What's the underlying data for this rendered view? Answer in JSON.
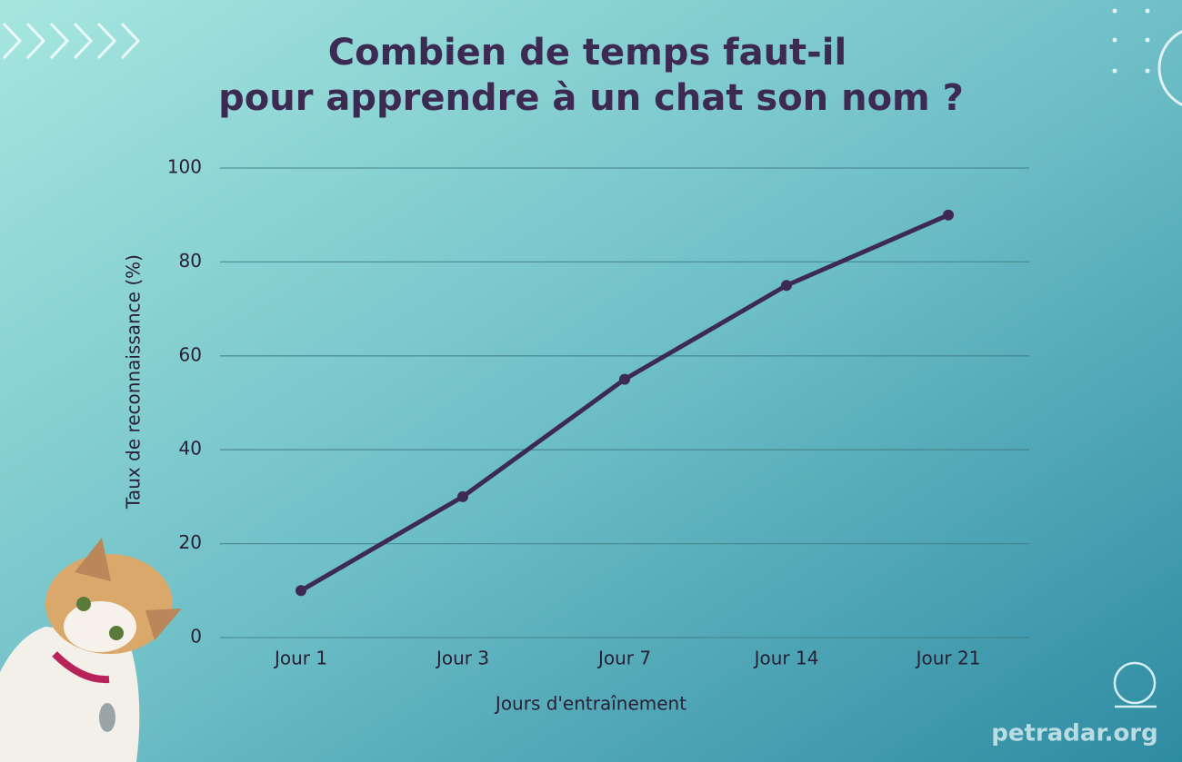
{
  "chart_data": {
    "type": "line",
    "title": [
      "Combien de temps faut-il",
      "pour apprendre à un chat son nom ?"
    ],
    "x_label": "Jours d'entraînement",
    "y_label": "Taux de reconnaissance (%)",
    "categories": [
      "Jour 1",
      "Jour 3",
      "Jour 7",
      "Jour 14",
      "Jour 21"
    ],
    "values": [
      10,
      30,
      55,
      75,
      90
    ],
    "color": "#3d2a52",
    "ylim": [
      0,
      100
    ],
    "yticks": [
      0,
      20,
      40,
      60,
      80,
      100
    ],
    "grid": true
  },
  "footer": {
    "site": "petradar.org"
  }
}
